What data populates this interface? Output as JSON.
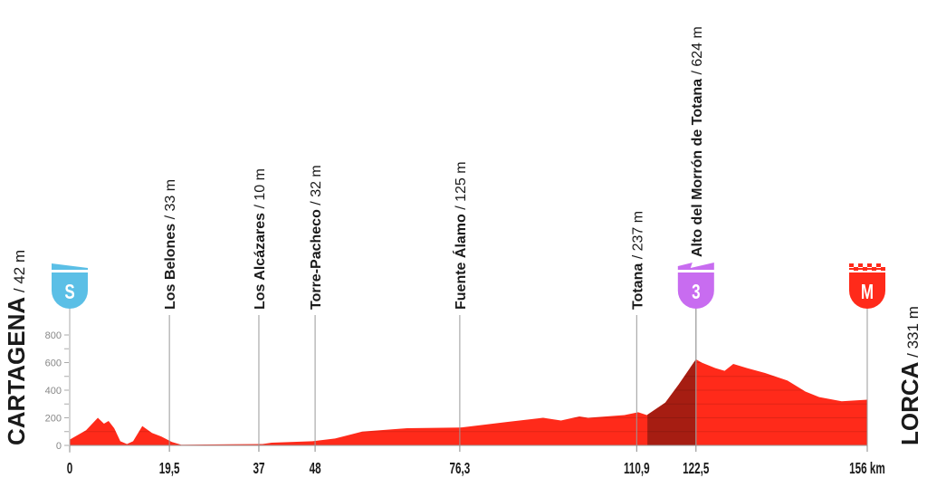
{
  "chart_data": {
    "type": "area",
    "title": "",
    "xlabel": "",
    "ylabel": "",
    "xlim": [
      0,
      156
    ],
    "ylim": [
      0,
      800
    ],
    "x_unit": "km",
    "y_ticks": [
      "0",
      "200",
      "400",
      "600",
      "800"
    ],
    "grid": true,
    "colors": {
      "profile": "#ff2a1a",
      "climb": "#a61d12",
      "start": "#5bbfe6",
      "climb_marker": "#c86cf0",
      "finish": "#ff2a1a"
    },
    "start": {
      "name": "CARTAGENA",
      "alt": " / 42 m"
    },
    "finish": {
      "name": "LORCA",
      "alt": " / 331 m"
    },
    "distance_labels": [
      {
        "km": 0,
        "label": "0"
      },
      {
        "km": 19.5,
        "label": "19,5"
      },
      {
        "km": 37,
        "label": "37"
      },
      {
        "km": 48,
        "label": "48"
      },
      {
        "km": 76.3,
        "label": "76,3"
      },
      {
        "km": 110.9,
        "label": "110,9"
      },
      {
        "km": 122.5,
        "label": "122,5"
      },
      {
        "km": 156,
        "label": "156 km"
      }
    ],
    "waypoints": [
      {
        "km": 19.5,
        "name": "Los Belones",
        "alt": " / 33 m"
      },
      {
        "km": 37,
        "name": "Los Alcázares",
        "alt": " / 10 m"
      },
      {
        "km": 48,
        "name": "Torre-Pacheco",
        "alt": " / 32 m"
      },
      {
        "km": 76.3,
        "name": "Fuente Álamo",
        "alt": " / 125 m"
      },
      {
        "km": 110.9,
        "name": "Totana",
        "alt": " / 237 m"
      },
      {
        "km": 122.5,
        "name": "Alto del Morrón de Totana",
        "alt": " / 624 m"
      }
    ],
    "markers": [
      {
        "km": 0,
        "label": "S",
        "type": "start"
      },
      {
        "km": 122.5,
        "label": "3",
        "type": "climb"
      },
      {
        "km": 156,
        "label": "M",
        "type": "finish"
      }
    ],
    "climb_range_km": [
      113,
      122.5
    ],
    "x": [
      0,
      3.2,
      5.5,
      6.7,
      7.6,
      8.7,
      9.9,
      11.2,
      12.4,
      14.2,
      16.1,
      17.9,
      20,
      21.8,
      37.7,
      39.5,
      47.5,
      51.9,
      57.2,
      60.7,
      66,
      76.7,
      85.5,
      92.6,
      96.1,
      99.7,
      101.4,
      108.5,
      111.2,
      112.9,
      116.5,
      119.1,
      122.5,
      123.6,
      126.3,
      128.1,
      129.8,
      132.5,
      136,
      140.4,
      143.9,
      146.6,
      151,
      156
    ],
    "y": [
      42,
      110,
      200,
      157,
      177,
      125,
      30,
      10,
      30,
      140,
      90,
      65,
      25,
      5,
      10,
      20,
      30,
      50,
      100,
      110,
      125,
      130,
      170,
      200,
      180,
      210,
      200,
      220,
      240,
      220,
      310,
      440,
      624,
      600,
      560,
      540,
      590,
      560,
      525,
      470,
      390,
      350,
      320,
      331
    ]
  }
}
